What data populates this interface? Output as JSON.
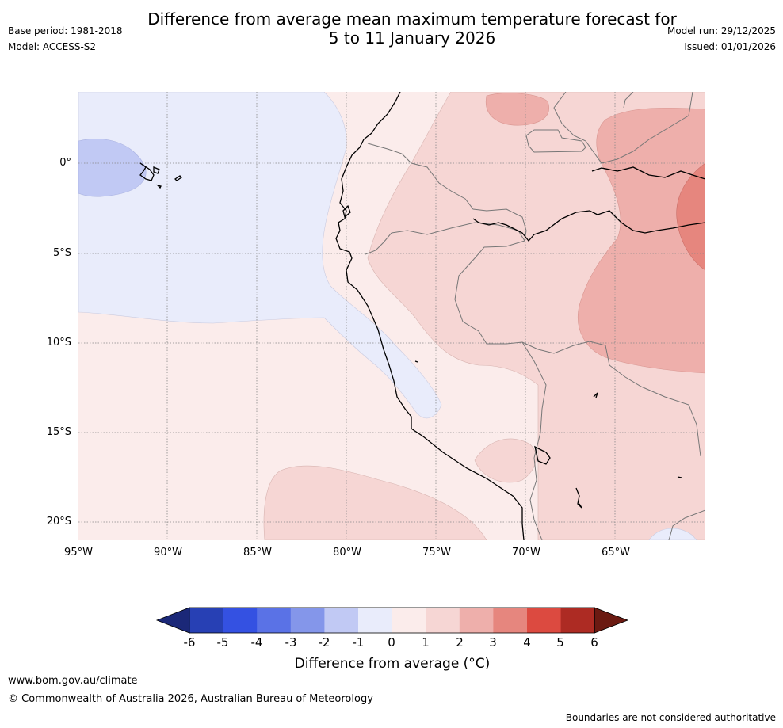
{
  "header": {
    "title_line1": "Difference from average mean maximum temperature forecast for",
    "title_line2": "5 to 11 January 2026",
    "base_period": "Base period: 1981-2018",
    "model": "Model: ACCESS-S2",
    "model_run": "Model run: 29/12/2025",
    "issued": "Issued: 01/01/2026"
  },
  "map": {
    "region": "Western South America and eastern Pacific",
    "lat_labels": [
      "0°",
      "5°S",
      "10°S",
      "15°S",
      "20°S"
    ],
    "lon_labels": [
      "95°W",
      "90°W",
      "85°W",
      "80°W",
      "75°W",
      "70°W",
      "65°W"
    ],
    "lon_range": [
      -95,
      -60
    ],
    "lat_range": [
      -21,
      4
    ]
  },
  "colorbar": {
    "title": "Difference from average ($^\\circ$C)",
    "title_display": "Difference from average (°C)",
    "ticks": [
      "-6",
      "-5",
      "-4",
      "-3",
      "-2",
      "-1",
      "0",
      "1",
      "2",
      "3",
      "4",
      "5",
      "6"
    ],
    "colors": [
      "#1b2878",
      "#2740b4",
      "#3451e2",
      "#5a72e6",
      "#8496ea",
      "#c1c9f4",
      "#e9ecfb",
      "#fbeceb",
      "#f6d6d4",
      "#eeafab",
      "#e6867e",
      "#dc4a40",
      "#ad2b23",
      "#6b1a12"
    ]
  },
  "footer": {
    "url": "www.bom.gov.au/climate",
    "copyright": "© Commonwealth of Australia 2026, Australian Bureau of Meteorology",
    "disclaimer": "Boundaries are not considered authoritative"
  }
}
